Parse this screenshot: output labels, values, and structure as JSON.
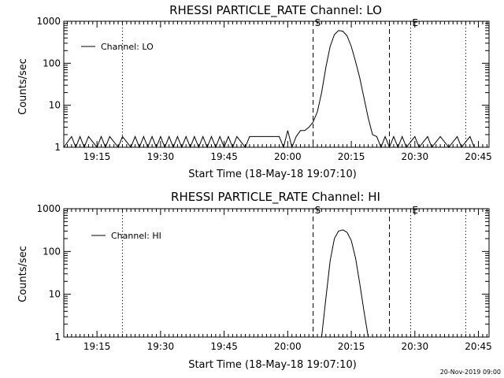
{
  "footer_timestamp": "20-Nov-2019 09:00",
  "chart_data": [
    {
      "type": "line",
      "title": "RHESSI PARTICLE_RATE Channel: LO",
      "xlabel": "Start Time (18-May-18 19:07:10)",
      "ylabel": "Counts/sec",
      "y_scale": "log",
      "ylim": [
        1,
        1000
      ],
      "xlim": [
        "19:07:10",
        "20:47:30"
      ],
      "x_ticks": [
        "19:15",
        "19:30",
        "19:45",
        "20:00",
        "20:15",
        "20:30",
        "20:45"
      ],
      "y_ticks": [
        "1",
        "10",
        "100",
        "1000"
      ],
      "legend": {
        "entries": [
          "Channel: LO"
        ],
        "position": "top-left"
      },
      "markers": [
        {
          "time": "19:21",
          "style": "dotted",
          "label": ""
        },
        {
          "time": "20:06",
          "style": "dashed",
          "label": "S"
        },
        {
          "time": "20:24",
          "style": "dashed",
          "label": ""
        },
        {
          "time": "20:29",
          "style": "dotted",
          "label": "E"
        },
        {
          "time": "20:42",
          "style": "dotted",
          "label": ""
        }
      ],
      "series": [
        {
          "name": "Channel: LO",
          "x": [
            "19:07:10",
            "19:09",
            "19:10",
            "19:11",
            "19:12",
            "19:13",
            "19:15",
            "19:16",
            "19:17",
            "19:18",
            "19:20",
            "19:21",
            "19:23",
            "19:24",
            "19:25",
            "19:26",
            "19:27",
            "19:28",
            "19:29",
            "19:30",
            "19:31",
            "19:32",
            "19:33",
            "19:34",
            "19:35",
            "19:36",
            "19:37",
            "19:38",
            "19:39",
            "19:40",
            "19:41",
            "19:42",
            "19:43",
            "19:44",
            "19:45",
            "19:46",
            "19:47",
            "19:48",
            "19:50",
            "19:51",
            "19:58",
            "19:59",
            "20:00",
            "20:01",
            "20:02",
            "20:03",
            "20:04",
            "20:05",
            "20:06",
            "20:07",
            "20:08",
            "20:09",
            "20:10",
            "20:11",
            "20:12",
            "20:13",
            "20:14",
            "20:15",
            "20:16",
            "20:17",
            "20:18",
            "20:19",
            "20:20",
            "20:21",
            "20:22",
            "20:23",
            "20:24",
            "20:25",
            "20:26",
            "20:27",
            "20:28",
            "20:30",
            "20:31",
            "20:33",
            "20:34",
            "20:36",
            "20:38",
            "20:40",
            "20:41",
            "20:43",
            "20:44",
            "20:46",
            "20:47:30"
          ],
          "values": [
            1,
            1.8,
            1,
            1.8,
            1,
            1.8,
            1,
            1.8,
            1,
            1.8,
            1,
            1.8,
            1,
            1.8,
            1,
            1.8,
            1,
            1.8,
            1,
            1.8,
            1,
            1.8,
            1,
            1.8,
            1,
            1.8,
            1,
            1.8,
            1,
            1.8,
            1,
            1.8,
            1,
            1.8,
            1,
            1.8,
            1,
            1.8,
            1,
            1.8,
            1.8,
            1,
            2.5,
            1,
            1.8,
            2.5,
            2.5,
            3,
            4,
            7,
            20,
            80,
            250,
            480,
            600,
            580,
            450,
            250,
            110,
            45,
            15,
            5,
            2,
            1.8,
            1,
            1.8,
            1,
            1.8,
            1,
            1.8,
            1,
            1.8,
            1,
            1.8,
            1,
            1.8,
            1,
            1.8,
            1,
            1.8,
            1,
            1,
            1
          ]
        }
      ]
    },
    {
      "type": "line",
      "title": "RHESSI PARTICLE_RATE Channel: HI",
      "xlabel": "Start Time (18-May-18 19:07:10)",
      "ylabel": "Counts/sec",
      "y_scale": "log",
      "ylim": [
        1,
        1000
      ],
      "xlim": [
        "19:07:10",
        "20:47:30"
      ],
      "x_ticks": [
        "19:15",
        "19:30",
        "19:45",
        "20:00",
        "20:15",
        "20:30",
        "20:45"
      ],
      "y_ticks": [
        "1",
        "10",
        "100",
        "1000"
      ],
      "legend": {
        "entries": [
          "Channel: HI"
        ],
        "position": "top-left"
      },
      "markers": [
        {
          "time": "19:21",
          "style": "dotted",
          "label": ""
        },
        {
          "time": "20:06",
          "style": "dashed",
          "label": "S"
        },
        {
          "time": "20:24",
          "style": "dashed",
          "label": ""
        },
        {
          "time": "20:29",
          "style": "dotted",
          "label": "E"
        },
        {
          "time": "20:42",
          "style": "dotted",
          "label": ""
        }
      ],
      "series": [
        {
          "name": "Channel: HI",
          "x": [
            "20:08",
            "20:09",
            "20:10",
            "20:11",
            "20:12",
            "20:13",
            "20:14",
            "20:15",
            "20:16",
            "20:17",
            "20:18",
            "20:19"
          ],
          "values": [
            1,
            8,
            60,
            200,
            300,
            320,
            280,
            180,
            70,
            18,
            4,
            1
          ]
        }
      ]
    }
  ]
}
